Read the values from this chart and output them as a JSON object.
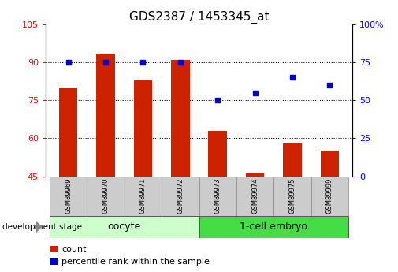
{
  "title": "GDS2387 / 1453345_at",
  "samples": [
    "GSM89969",
    "GSM89970",
    "GSM89971",
    "GSM89972",
    "GSM89973",
    "GSM89974",
    "GSM89975",
    "GSM89999"
  ],
  "counts": [
    80.0,
    93.5,
    83.0,
    91.0,
    63.0,
    46.0,
    58.0,
    55.0
  ],
  "percentile": [
    75.0,
    75.0,
    75.0,
    75.0,
    50.0,
    55.0,
    65.0,
    60.0
  ],
  "left_ylim": [
    45,
    105
  ],
  "right_ylim": [
    0,
    100
  ],
  "left_yticks": [
    45,
    60,
    75,
    90,
    105
  ],
  "right_yticks": [
    0,
    25,
    50,
    75,
    100
  ],
  "right_yticklabels": [
    "0",
    "25",
    "50",
    "75",
    "100%"
  ],
  "bar_color": "#cc2200",
  "dot_color": "#0000cc",
  "groups": [
    {
      "label": "oocyte",
      "indices": [
        0,
        1,
        2,
        3
      ],
      "color": "#ccffcc"
    },
    {
      "label": "1-cell embryo",
      "indices": [
        4,
        5,
        6,
        7
      ],
      "color": "#44dd44"
    }
  ],
  "legend_count_label": "count",
  "legend_pct_label": "percentile rank within the sample",
  "dev_stage_label": "development stage",
  "tick_bg_color": "#cccccc",
  "title_fontsize": 11,
  "tick_fontsize": 8,
  "sample_fontsize": 6,
  "group_fontsize": 9,
  "legend_fontsize": 8
}
